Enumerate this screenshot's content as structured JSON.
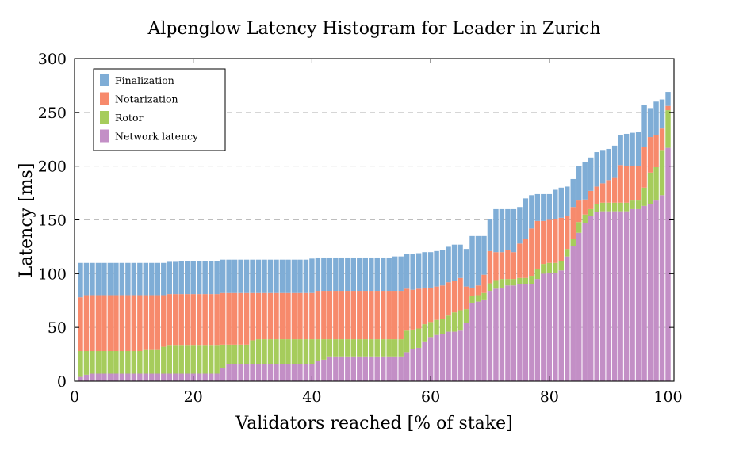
{
  "chart_data": {
    "type": "bar",
    "stacked": true,
    "title": "Alpenglow Latency Histogram for Leader in Zurich",
    "xlabel": "Validators reached [% of stake]",
    "ylabel": "Latency [ms]",
    "xlim": [
      0,
      101
    ],
    "ylim": [
      0,
      300
    ],
    "xticks": [
      0,
      20,
      40,
      60,
      80,
      100
    ],
    "yticks": [
      0,
      50,
      100,
      150,
      200,
      250,
      300
    ],
    "grid": "horizontal dashed",
    "legend_position": "top-left",
    "x": [
      1,
      2,
      3,
      4,
      5,
      6,
      7,
      8,
      9,
      10,
      11,
      12,
      13,
      14,
      15,
      16,
      17,
      18,
      19,
      20,
      21,
      22,
      23,
      24,
      25,
      26,
      27,
      28,
      29,
      30,
      31,
      32,
      33,
      34,
      35,
      36,
      37,
      38,
      39,
      40,
      41,
      42,
      43,
      44,
      45,
      46,
      47,
      48,
      49,
      50,
      51,
      52,
      53,
      54,
      55,
      56,
      57,
      58,
      59,
      60,
      61,
      62,
      63,
      64,
      65,
      66,
      67,
      68,
      69,
      70,
      71,
      72,
      73,
      74,
      75,
      76,
      77,
      78,
      79,
      80,
      81,
      82,
      83,
      84,
      85,
      86,
      87,
      88,
      89,
      90,
      91,
      92,
      93,
      94,
      95,
      96,
      97,
      98,
      99,
      100
    ],
    "series": [
      {
        "name": "Network latency",
        "color": "#c38fc6",
        "values": [
          4,
          6,
          7,
          7,
          7,
          7,
          7,
          7,
          7,
          7,
          7,
          7,
          7,
          7,
          7,
          7,
          7,
          7,
          7,
          7,
          7,
          7,
          7,
          7,
          12,
          16,
          16,
          16,
          16,
          16,
          16,
          16,
          16,
          16,
          16,
          16,
          16,
          16,
          16,
          16,
          19,
          20,
          23,
          23,
          23,
          23,
          23,
          23,
          23,
          23,
          23,
          23,
          23,
          23,
          23,
          27,
          30,
          31,
          37,
          41,
          43,
          44,
          46,
          46,
          47,
          54,
          73,
          74,
          76,
          84,
          86,
          87,
          89,
          89,
          90,
          90,
          90,
          95,
          100,
          101,
          101,
          103,
          116,
          126,
          138,
          147,
          154,
          157,
          158,
          158,
          158,
          158,
          158,
          160,
          160,
          163,
          165,
          168,
          173,
          217
        ]
      },
      {
        "name": "Rotor",
        "values": [
          24,
          22,
          21,
          21,
          21,
          21,
          21,
          21,
          21,
          21,
          21,
          22,
          22,
          22,
          25,
          26,
          26,
          26,
          26,
          26,
          26,
          26,
          26,
          26,
          22,
          18,
          18,
          18,
          18,
          22,
          23,
          23,
          23,
          23,
          23,
          23,
          23,
          23,
          23,
          23,
          20,
          19,
          16,
          16,
          16,
          16,
          16,
          16,
          16,
          16,
          16,
          16,
          16,
          16,
          16,
          20,
          18,
          18,
          16,
          14,
          14,
          14,
          15,
          18,
          19,
          13,
          6,
          6,
          6,
          7,
          8,
          8,
          6,
          6,
          6,
          6,
          8,
          9,
          9,
          9,
          9,
          9,
          7,
          6,
          10,
          8,
          6,
          8,
          8,
          8,
          8,
          8,
          8,
          8,
          8,
          17,
          29,
          31,
          42,
          35
        ],
        "color": "#a6cc5c"
      },
      {
        "name": "Notarization",
        "values": [
          50,
          52,
          52,
          52,
          52,
          52,
          52,
          52,
          52,
          52,
          52,
          51,
          51,
          51,
          48,
          48,
          48,
          48,
          48,
          48,
          48,
          48,
          48,
          48,
          48,
          48,
          48,
          48,
          48,
          44,
          43,
          43,
          43,
          43,
          43,
          43,
          43,
          43,
          43,
          43,
          45,
          45,
          45,
          45,
          45,
          45,
          45,
          45,
          45,
          45,
          45,
          45,
          45,
          45,
          45,
          39,
          37,
          37,
          34,
          32,
          31,
          31,
          31,
          29,
          30,
          21,
          8,
          9,
          17,
          30,
          26,
          25,
          27,
          25,
          32,
          36,
          44,
          45,
          40,
          40,
          41,
          40,
          31,
          30,
          20,
          14,
          17,
          16,
          18,
          21,
          23,
          35,
          34,
          32,
          32,
          38,
          33,
          30,
          20,
          4
        ],
        "color": "#f78a6c"
      },
      {
        "name": "Finalization",
        "values": [
          32,
          30,
          30,
          30,
          30,
          30,
          30,
          30,
          30,
          30,
          30,
          30,
          30,
          30,
          30,
          30,
          30,
          31,
          31,
          31,
          31,
          31,
          31,
          31,
          31,
          31,
          31,
          31,
          31,
          31,
          31,
          31,
          31,
          31,
          31,
          31,
          31,
          31,
          31,
          32,
          31,
          31,
          31,
          31,
          31,
          31,
          31,
          31,
          31,
          31,
          31,
          31,
          31,
          32,
          32,
          32,
          33,
          33,
          33,
          33,
          33,
          33,
          33,
          34,
          31,
          35,
          48,
          46,
          36,
          30,
          40,
          40,
          38,
          40,
          34,
          38,
          31,
          25,
          25,
          24,
          27,
          28,
          27,
          26,
          32,
          35,
          31,
          32,
          31,
          29,
          30,
          28,
          30,
          31,
          32,
          39,
          27,
          31,
          27,
          13
        ],
        "color": "#7fadd6"
      }
    ]
  }
}
